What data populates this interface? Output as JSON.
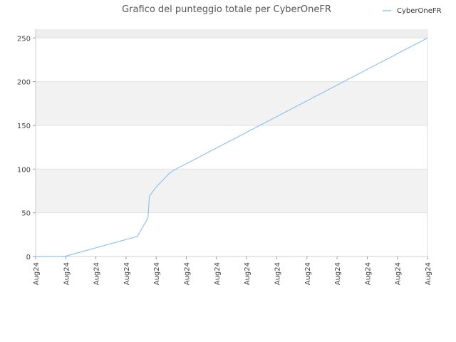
{
  "chart_data": {
    "type": "line",
    "title": "Grafico del punteggio totale per CyberOneFR",
    "xlabel": "",
    "ylabel": "",
    "ylim": [
      0,
      260
    ],
    "yticks": [
      0,
      50,
      100,
      150,
      200,
      250
    ],
    "x_tick_labels": [
      "Aug24",
      "Aug24",
      "Aug24",
      "Aug24",
      "Aug24",
      "Aug24",
      "Aug24",
      "Aug24",
      "Aug24",
      "Aug24",
      "Aug24",
      "Aug24",
      "Aug24",
      "Aug24"
    ],
    "grid": true,
    "legend_position": "top-right",
    "series": [
      {
        "name": "CyberOneFR",
        "color": "#8fc3ee",
        "x": [
          0.0,
          0.0734,
          0.2596,
          0.2868,
          0.2904,
          0.3086,
          0.3432,
          0.354,
          1.0
        ],
        "y": [
          0,
          0,
          23,
          44,
          69,
          80,
          96,
          99,
          250
        ]
      }
    ]
  }
}
